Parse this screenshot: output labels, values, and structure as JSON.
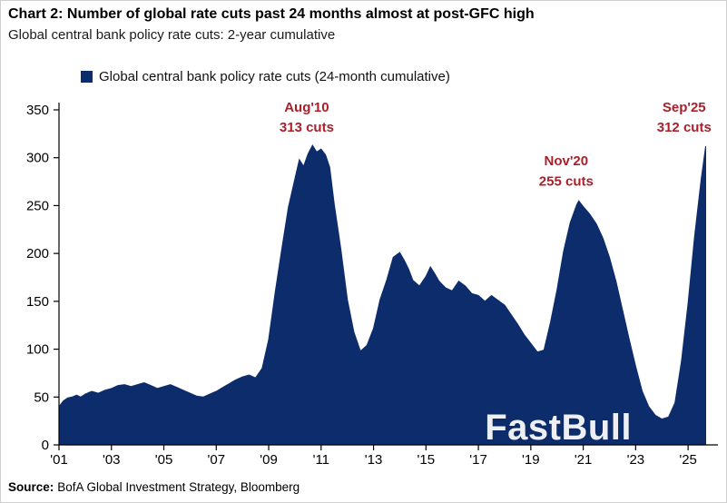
{
  "colors": {
    "area": "#0d2c6b",
    "annotation": "#ab1f2b",
    "axis": "#000000",
    "watermark_text": "#ffffff"
  },
  "chart_data": {
    "type": "area",
    "title": "Chart 2: Number of global rate cuts past 24 months almost at post-GFC high",
    "subtitle": "Global central bank policy rate cuts: 2-year cumulative",
    "legend_label": "Global central bank policy rate cuts (24-month cumulative)",
    "legend_position": "top",
    "xlabel": "",
    "ylabel": "",
    "xlim": [
      2001,
      2026
    ],
    "ylim": [
      0,
      350
    ],
    "grid": false,
    "y_ticks": [
      0,
      50,
      100,
      150,
      200,
      250,
      300,
      350
    ],
    "x_ticks": [
      {
        "x": 2001,
        "label": "'01"
      },
      {
        "x": 2003,
        "label": "'03"
      },
      {
        "x": 2005,
        "label": "'05"
      },
      {
        "x": 2007,
        "label": "'07"
      },
      {
        "x": 2009,
        "label": "'09"
      },
      {
        "x": 2011,
        "label": "'11"
      },
      {
        "x": 2013,
        "label": "'13"
      },
      {
        "x": 2015,
        "label": "'15"
      },
      {
        "x": 2017,
        "label": "'17"
      },
      {
        "x": 2019,
        "label": "'19"
      },
      {
        "x": 2021,
        "label": "'21"
      },
      {
        "x": 2023,
        "label": "'23"
      },
      {
        "x": 2025,
        "label": "'25"
      }
    ],
    "annotations": [
      {
        "x": 2010.45,
        "lines": [
          "Aug'10",
          "313 cuts"
        ],
        "y": [
          348,
          327
        ]
      },
      {
        "x": 2020.35,
        "lines": [
          "Nov'20",
          "255 cuts"
        ],
        "y": [
          292,
          271
        ]
      },
      {
        "x": 2024.85,
        "lines": [
          "Sep'25",
          "312 cuts"
        ],
        "y": [
          348,
          327
        ]
      }
    ],
    "series": [
      {
        "name": "Global central bank policy rate cuts (24-month cumulative)",
        "points": [
          [
            2001.0,
            40
          ],
          [
            2001.17,
            46
          ],
          [
            2001.33,
            49
          ],
          [
            2001.5,
            50
          ],
          [
            2001.67,
            52
          ],
          [
            2001.83,
            50
          ],
          [
            2002.0,
            53
          ],
          [
            2002.25,
            56
          ],
          [
            2002.5,
            54
          ],
          [
            2002.75,
            57
          ],
          [
            2003.0,
            59
          ],
          [
            2003.25,
            62
          ],
          [
            2003.5,
            63
          ],
          [
            2003.75,
            61
          ],
          [
            2004.0,
            63
          ],
          [
            2004.25,
            65
          ],
          [
            2004.5,
            62
          ],
          [
            2004.75,
            59
          ],
          [
            2005.0,
            61
          ],
          [
            2005.25,
            63
          ],
          [
            2005.5,
            60
          ],
          [
            2005.75,
            57
          ],
          [
            2006.0,
            54
          ],
          [
            2006.25,
            51
          ],
          [
            2006.5,
            50
          ],
          [
            2006.75,
            53
          ],
          [
            2007.0,
            56
          ],
          [
            2007.25,
            60
          ],
          [
            2007.5,
            64
          ],
          [
            2007.75,
            68
          ],
          [
            2008.0,
            71
          ],
          [
            2008.25,
            73
          ],
          [
            2008.5,
            70
          ],
          [
            2008.75,
            80
          ],
          [
            2009.0,
            110
          ],
          [
            2009.25,
            160
          ],
          [
            2009.5,
            205
          ],
          [
            2009.75,
            248
          ],
          [
            2010.0,
            278
          ],
          [
            2010.17,
            298
          ],
          [
            2010.33,
            291
          ],
          [
            2010.5,
            304
          ],
          [
            2010.67,
            313
          ],
          [
            2010.83,
            306
          ],
          [
            2011.0,
            309
          ],
          [
            2011.17,
            303
          ],
          [
            2011.33,
            290
          ],
          [
            2011.5,
            252
          ],
          [
            2011.75,
            205
          ],
          [
            2012.0,
            152
          ],
          [
            2012.25,
            118
          ],
          [
            2012.5,
            98
          ],
          [
            2012.75,
            104
          ],
          [
            2013.0,
            122
          ],
          [
            2013.25,
            152
          ],
          [
            2013.5,
            172
          ],
          [
            2013.75,
            196
          ],
          [
            2014.0,
            201
          ],
          [
            2014.17,
            193
          ],
          [
            2014.33,
            184
          ],
          [
            2014.5,
            172
          ],
          [
            2014.75,
            166
          ],
          [
            2015.0,
            176
          ],
          [
            2015.17,
            186
          ],
          [
            2015.33,
            179
          ],
          [
            2015.5,
            171
          ],
          [
            2015.75,
            164
          ],
          [
            2016.0,
            161
          ],
          [
            2016.25,
            171
          ],
          [
            2016.5,
            166
          ],
          [
            2016.75,
            158
          ],
          [
            2017.0,
            156
          ],
          [
            2017.25,
            150
          ],
          [
            2017.5,
            156
          ],
          [
            2017.75,
            151
          ],
          [
            2018.0,
            146
          ],
          [
            2018.25,
            136
          ],
          [
            2018.5,
            126
          ],
          [
            2018.75,
            115
          ],
          [
            2019.0,
            106
          ],
          [
            2019.25,
            97
          ],
          [
            2019.5,
            99
          ],
          [
            2019.75,
            128
          ],
          [
            2020.0,
            162
          ],
          [
            2020.25,
            202
          ],
          [
            2020.5,
            232
          ],
          [
            2020.75,
            251
          ],
          [
            2020.83,
            255
          ],
          [
            2021.0,
            249
          ],
          [
            2021.25,
            241
          ],
          [
            2021.5,
            231
          ],
          [
            2021.75,
            216
          ],
          [
            2022.0,
            196
          ],
          [
            2022.25,
            171
          ],
          [
            2022.5,
            141
          ],
          [
            2022.75,
            111
          ],
          [
            2023.0,
            82
          ],
          [
            2023.25,
            56
          ],
          [
            2023.5,
            40
          ],
          [
            2023.75,
            31
          ],
          [
            2024.0,
            27
          ],
          [
            2024.25,
            29
          ],
          [
            2024.5,
            44
          ],
          [
            2024.75,
            88
          ],
          [
            2025.0,
            148
          ],
          [
            2025.25,
            218
          ],
          [
            2025.5,
            278
          ],
          [
            2025.67,
            312
          ]
        ]
      }
    ],
    "watermark": "FastBull",
    "source_label": "Source:",
    "source_text": "BofA Global Investment Strategy, Bloomberg"
  }
}
